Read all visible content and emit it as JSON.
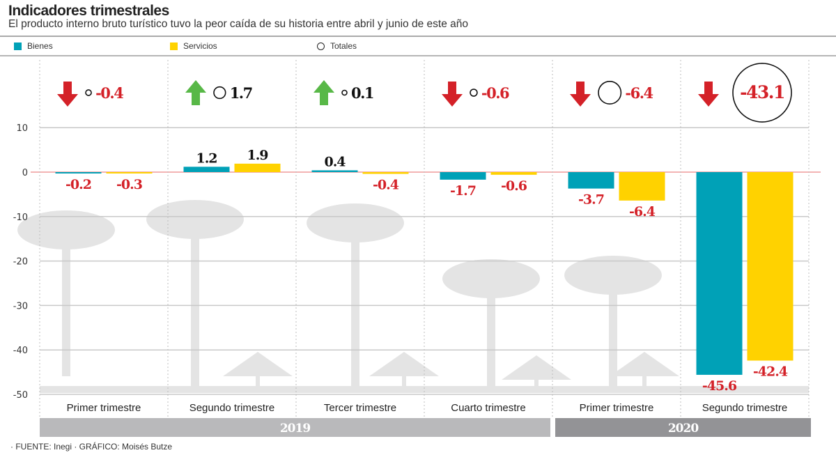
{
  "header": {
    "title": "Indicadores trimestrales",
    "subtitle": "El producto interno bruto turístico tuvo la peor caída de su historia entre abril y junio de este año"
  },
  "legend": [
    {
      "label": "Bienes",
      "icon": "square-swatch",
      "color": "#00a1b7"
    },
    {
      "label": "Servicios",
      "icon": "square-swatch",
      "color": "#ffd200"
    },
    {
      "label": "Totales",
      "icon": "circle-outline"
    }
  ],
  "footer": {
    "source": "· FUENTE: Inegi · GRÁFICO: Moisés Butze"
  },
  "colors": {
    "bienes": "#00a1b7",
    "servicios": "#ffd200",
    "negative": "#d42128",
    "positive_arrow": "#58b847",
    "zero_line": "#ef9a9a",
    "grid": "#c8c8c8",
    "year_2019": "#b9b9bb",
    "year_2020": "#939396"
  },
  "chart_data": {
    "type": "bar",
    "title": "Indicadores trimestrales",
    "subtitle": "El producto interno bruto turístico tuvo la peor caída de su historia entre abril y junio de este año",
    "xlabel": "",
    "ylabel": "",
    "ylim": [
      -50,
      10
    ],
    "yticks": [
      10,
      0,
      -10,
      -20,
      -30,
      -40,
      -50
    ],
    "ytick_labels": [
      "10",
      "0",
      "-10",
      "-20",
      "-30",
      "-40",
      "-50"
    ],
    "grid": true,
    "legend_position": "top",
    "categories": [
      "Primer trimestre",
      "Segundo trimestre",
      "Tercer trimestre",
      "Cuarto trimestre",
      "Primer trimestre",
      "Segundo trimestre"
    ],
    "category_labels": [
      "Primer trimestre",
      "Segundo trimestre",
      "Tercer trimestre",
      "Cuarto trimestre",
      "Primer trimestre",
      "Segundo trimestre"
    ],
    "groups": [
      {
        "label": "2019",
        "categories": [
          0,
          1,
          2,
          3
        ]
      },
      {
        "label": "2020",
        "categories": [
          4,
          5
        ]
      }
    ],
    "series": [
      {
        "name": "Bienes",
        "values": [
          -0.2,
          1.2,
          0.4,
          -1.7,
          -3.7,
          -45.6
        ],
        "labels": [
          "-0.2",
          "1.2",
          "0.4",
          "-1.7",
          "-3.7",
          "-45.6"
        ]
      },
      {
        "name": "Servicios",
        "values": [
          -0.3,
          1.9,
          -0.4,
          -0.6,
          -6.4,
          -42.4
        ],
        "labels": [
          "-0.3",
          "1.9",
          "-0.4",
          "-0.6",
          "-6.4",
          "-42.4"
        ]
      }
    ],
    "totals": {
      "name": "Totales",
      "values": [
        -0.4,
        1.7,
        0.1,
        -0.6,
        -6.4,
        -43.1
      ],
      "labels": [
        "-0.4",
        "1.7",
        "0.1",
        "-0.6",
        "-6.4",
        "-43.1"
      ],
      "direction": [
        "down",
        "up",
        "up",
        "down",
        "down",
        "down"
      ]
    }
  }
}
